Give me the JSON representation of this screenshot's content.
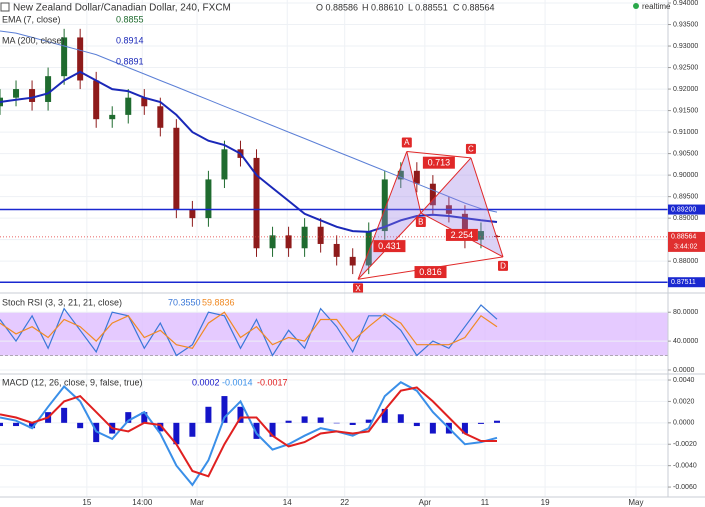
{
  "header": {
    "title": "New Zealand Dollar/Canadian Dollar, 240, FXCM",
    "ohlc": [
      "O 0.88586",
      "H 0.88610",
      "L 0.88551",
      "C 0.88564"
    ],
    "status": "realtime"
  },
  "chart_data": [
    {
      "type": "candlestick",
      "up_color": "#1f6b2f",
      "down_color": "#8e1b1b",
      "x": [
        0,
        2.4,
        4.8,
        7.2,
        9.6,
        12,
        14.4,
        16.8,
        19.2,
        21.6,
        24,
        26.4,
        28.8,
        31.2,
        33.6,
        36,
        38.4,
        40.8,
        43.2,
        45.6,
        48,
        50.4,
        52.8,
        55.2,
        57.6,
        60,
        62.4,
        64.8,
        67.2,
        69.6,
        72,
        74.4
      ],
      "open": [
        0.916,
        0.918,
        0.92,
        0.917,
        0.923,
        0.932,
        0.922,
        0.913,
        0.914,
        0.918,
        0.916,
        0.911,
        0.892,
        0.89,
        0.899,
        0.906,
        0.904,
        0.883,
        0.886,
        0.883,
        0.888,
        0.884,
        0.881,
        0.879,
        0.887,
        0.899,
        0.901,
        0.898,
        0.893,
        0.891,
        0.885,
        0.88586
      ],
      "high": [
        0.92,
        0.922,
        0.922,
        0.925,
        0.934,
        0.934,
        0.924,
        0.916,
        0.92,
        0.92,
        0.918,
        0.913,
        0.894,
        0.901,
        0.908,
        0.908,
        0.906,
        0.888,
        0.888,
        0.89,
        0.89,
        0.886,
        0.883,
        0.889,
        0.901,
        0.903,
        0.903,
        0.9,
        0.895,
        0.893,
        0.889,
        0.8861
      ],
      "low": [
        0.914,
        0.916,
        0.915,
        0.915,
        0.921,
        0.92,
        0.911,
        0.911,
        0.912,
        0.914,
        0.909,
        0.89,
        0.888,
        0.888,
        0.897,
        0.902,
        0.881,
        0.881,
        0.881,
        0.881,
        0.882,
        0.879,
        0.877,
        0.877,
        0.885,
        0.897,
        0.896,
        0.891,
        0.889,
        0.883,
        0.883,
        0.88551
      ],
      "close": [
        0.918,
        0.92,
        0.917,
        0.923,
        0.932,
        0.922,
        0.913,
        0.914,
        0.918,
        0.916,
        0.911,
        0.892,
        0.89,
        0.899,
        0.906,
        0.904,
        0.883,
        0.886,
        0.883,
        0.888,
        0.884,
        0.881,
        0.879,
        0.887,
        0.899,
        0.901,
        0.898,
        0.893,
        0.891,
        0.885,
        0.887,
        0.88564
      ],
      "lines": [
        {
          "color": "#5b7fd6",
          "width": 1,
          "values": [
            0.9335,
            0.933,
            0.932,
            0.931,
            0.93,
            0.929,
            0.928,
            0.9265,
            0.925,
            0.9235,
            0.922,
            0.9205,
            0.919,
            0.9175,
            0.916,
            0.9145,
            0.913,
            0.9115,
            0.91,
            0.9085,
            0.907,
            0.9055,
            0.904,
            0.9025,
            0.901,
            0.8995,
            0.898,
            0.8965,
            0.895,
            0.8935,
            0.8922,
            0.8914
          ]
        },
        {
          "color": "#1a28b8",
          "width": 2,
          "values": [
            0.917,
            0.9175,
            0.918,
            0.919,
            0.922,
            0.924,
            0.922,
            0.92,
            0.9195,
            0.918,
            0.917,
            0.914,
            0.91,
            0.908,
            0.907,
            0.905,
            0.9,
            0.897,
            0.894,
            0.891,
            0.8895,
            0.888,
            0.887,
            0.8868,
            0.888,
            0.8895,
            0.8905,
            0.8908,
            0.8905,
            0.89,
            0.8895,
            0.8891
          ]
        }
      ],
      "legend": [
        {
          "name": "EMA (7, close)",
          "value": 0.8855,
          "color": "#1f6b2f"
        },
        {
          "name": "MA (200, close)",
          "value": 0.8914,
          "color": "#1a28b8"
        },
        {
          "value": 0.8891,
          "color": "#1a28b8"
        }
      ],
      "hlines": [
        {
          "value": 0.892,
          "label": "0.89200",
          "color": "#1a28d0"
        },
        {
          "value": 0.87511,
          "label": "0.87511",
          "color": "#1a28d0"
        }
      ],
      "last_price": 0.88564,
      "countdown": "3:44:02",
      "last_color": "#e03030",
      "pattern": {
        "color": "#e02828",
        "fill": "#9b7fe6",
        "points": [
          {
            "label": "X",
            "x": 53.6,
            "y": 0.8758
          },
          {
            "label": "A",
            "x": 60.9,
            "y": 0.9055
          },
          {
            "label": "B",
            "x": 63,
            "y": 0.8912
          },
          {
            "label": "C",
            "x": 70.5,
            "y": 0.904
          },
          {
            "label": "D",
            "x": 75.3,
            "y": 0.881
          }
        ],
        "ratios": [
          0.713,
          0.431,
          2.254,
          0.816
        ]
      },
      "xlim": [
        0,
        100
      ],
      "xticks": [
        {
          "value": 13,
          "label": "15"
        },
        {
          "value": 21.3,
          "label": "14:00"
        },
        {
          "value": 29.5,
          "label": "Mar"
        },
        {
          "value": 43,
          "label": "14"
        },
        {
          "value": 51.6,
          "label": "22"
        },
        {
          "value": 63.6,
          "label": "Apr"
        },
        {
          "value": 72.6,
          "label": "11"
        },
        {
          "value": 81.6,
          "label": "19"
        },
        {
          "value": 95.2,
          "label": "May"
        }
      ],
      "ylim": [
        0.8733,
        0.9407
      ],
      "yticks": [
        {
          "value": 0.94,
          "label": "0.94000"
        },
        {
          "value": 0.935,
          "label": "0.93500"
        },
        {
          "value": 0.93,
          "label": "0.93000"
        },
        {
          "value": 0.925,
          "label": "0.92500"
        },
        {
          "value": 0.92,
          "label": "0.92000"
        },
        {
          "value": 0.915,
          "label": "0.91500"
        },
        {
          "value": 0.91,
          "label": "0.91000"
        },
        {
          "value": 0.905,
          "label": "0.90500"
        },
        {
          "value": 0.9,
          "label": "0.90000"
        },
        {
          "value": 0.895,
          "label": "0.89500"
        },
        {
          "value": 0.89,
          "label": "0.89000"
        },
        {
          "value": 0.885,
          "label": "0.88500"
        },
        {
          "value": 0.88,
          "label": "0.88000"
        },
        {
          "value": 0.875,
          "label": "0.87500"
        }
      ],
      "grid": true
    },
    {
      "type": "line",
      "title": "Stoch RSI (3, 3, 21, 21, close)",
      "band": [
        20,
        80
      ],
      "band_color": "#dcb8ff",
      "series": [
        {
          "color": "#3a78d8",
          "values": [
            70,
            40,
            75,
            30,
            85,
            55,
            25,
            80,
            75,
            30,
            65,
            20,
            35,
            80,
            75,
            30,
            70,
            20,
            55,
            30,
            85,
            60,
            25,
            75,
            75,
            55,
            20,
            40,
            30,
            60,
            90,
            70.355
          ],
          "value_label": "70.3550"
        },
        {
          "color": "#f08a24",
          "values": [
            65,
            50,
            60,
            45,
            70,
            60,
            40,
            65,
            75,
            45,
            55,
            35,
            30,
            65,
            80,
            45,
            60,
            35,
            45,
            40,
            70,
            70,
            40,
            60,
            78,
            65,
            35,
            35,
            35,
            45,
            75,
            59.8836
          ],
          "value_label": "59.8836"
        }
      ],
      "ylim": [
        -2.8,
        102.5
      ],
      "yticks": [
        {
          "value": 80,
          "label": "80.0000"
        },
        {
          "value": 40,
          "label": "40.0000"
        },
        {
          "value": 0,
          "label": "0.0000"
        }
      ],
      "grid": true
    },
    {
      "type": "macd",
      "title": "MACD (12, 26, close, 9, false, true)",
      "histogram": {
        "color": "#1414c8",
        "values": [
          -0.0003,
          -0.0003,
          -0.0005,
          0.001,
          0.0014,
          -0.0005,
          -0.0018,
          -0.001,
          0.001,
          0.001,
          -0.0008,
          -0.002,
          -0.0013,
          0.0015,
          0.0025,
          0.0015,
          -0.0015,
          -0.0013,
          0.0002,
          0.0006,
          0.0005,
          0,
          -0.0002,
          0.0003,
          0.0013,
          0.0008,
          -0.0003,
          -0.001,
          -0.001,
          -0.001,
          -0.0001,
          0.0002
        ],
        "value_label": "0.0002"
      },
      "series": [
        {
          "color": "#3a8fe8",
          "values": [
            0.0005,
            0.0002,
            -0.0005,
            0.0015,
            0.0034,
            0.002,
            -0.0008,
            -0.0015,
            0.0002,
            0.001,
            -0.001,
            -0.004,
            -0.0058,
            -0.0035,
            0.0005,
            0.002,
            -0.001,
            -0.0025,
            -0.002,
            -0.0012,
            -0.0005,
            -0.0008,
            -0.0012,
            -0.0005,
            0.0025,
            0.0038,
            0.003,
            0.001,
            -0.0005,
            -0.002,
            -0.0018,
            -0.0014
          ],
          "value_label": "-0.0014"
        },
        {
          "color": "#e02020",
          "values": [
            0.0008,
            0.0005,
            0,
            0.0005,
            0.002,
            0.0025,
            0.001,
            -0.0005,
            -0.0008,
            0,
            -0.0002,
            -0.002,
            -0.0045,
            -0.005,
            -0.002,
            0.0005,
            0.0005,
            -0.0012,
            -0.0022,
            -0.0018,
            -0.001,
            -0.0008,
            -0.001,
            -0.0008,
            0.0012,
            0.003,
            0.0033,
            0.002,
            0.0005,
            -0.001,
            -0.0017,
            -0.0017
          ],
          "value_label": "-0.0017"
        }
      ],
      "ylim": [
        -0.00693,
        0.00447
      ],
      "yticks": [
        {
          "value": 0.004,
          "label": "0.0040"
        },
        {
          "value": 0.002,
          "label": "0.0020"
        },
        {
          "value": 0,
          "label": "0.0000"
        },
        {
          "value": -0.002,
          "label": "-0.0020"
        },
        {
          "value": -0.004,
          "label": "-0.0040"
        },
        {
          "value": -0.006,
          "label": "-0.0060"
        }
      ],
      "grid": true
    }
  ]
}
